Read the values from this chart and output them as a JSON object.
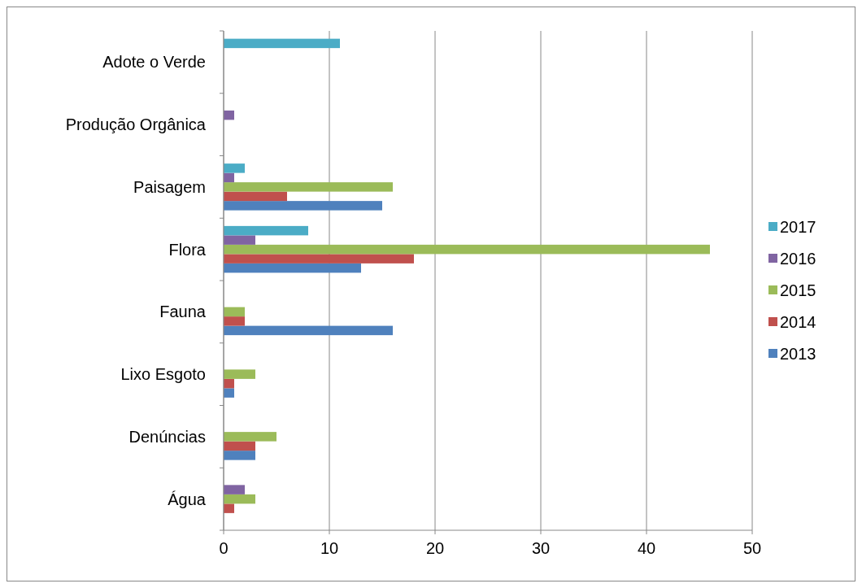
{
  "chart_data": {
    "type": "bar",
    "orientation": "horizontal",
    "categories": [
      "Adote o Verde",
      "Produção Orgânica",
      "Paisagem",
      "Flora",
      "Fauna",
      "Lixo Esgoto",
      "Denúncias",
      "Água"
    ],
    "series": [
      {
        "name": "2013",
        "color": "#4f81bd",
        "values": [
          null,
          null,
          15,
          13,
          16,
          1,
          3,
          null
        ]
      },
      {
        "name": "2014",
        "color": "#c0504d",
        "values": [
          null,
          null,
          6,
          18,
          2,
          1,
          3,
          1
        ]
      },
      {
        "name": "2015",
        "color": "#9bbb59",
        "values": [
          null,
          null,
          16,
          46,
          2,
          3,
          5,
          3
        ]
      },
      {
        "name": "2016",
        "color": "#8064a2",
        "values": [
          null,
          1,
          1,
          3,
          null,
          null,
          null,
          2
        ]
      },
      {
        "name": "2017",
        "color": "#4bacc6",
        "values": [
          11,
          null,
          2,
          8,
          null,
          null,
          null,
          null
        ]
      }
    ],
    "xlim": [
      0,
      50
    ],
    "xticks": [
      0,
      10,
      20,
      30,
      40,
      50
    ],
    "grid": "x",
    "legend": "right"
  }
}
